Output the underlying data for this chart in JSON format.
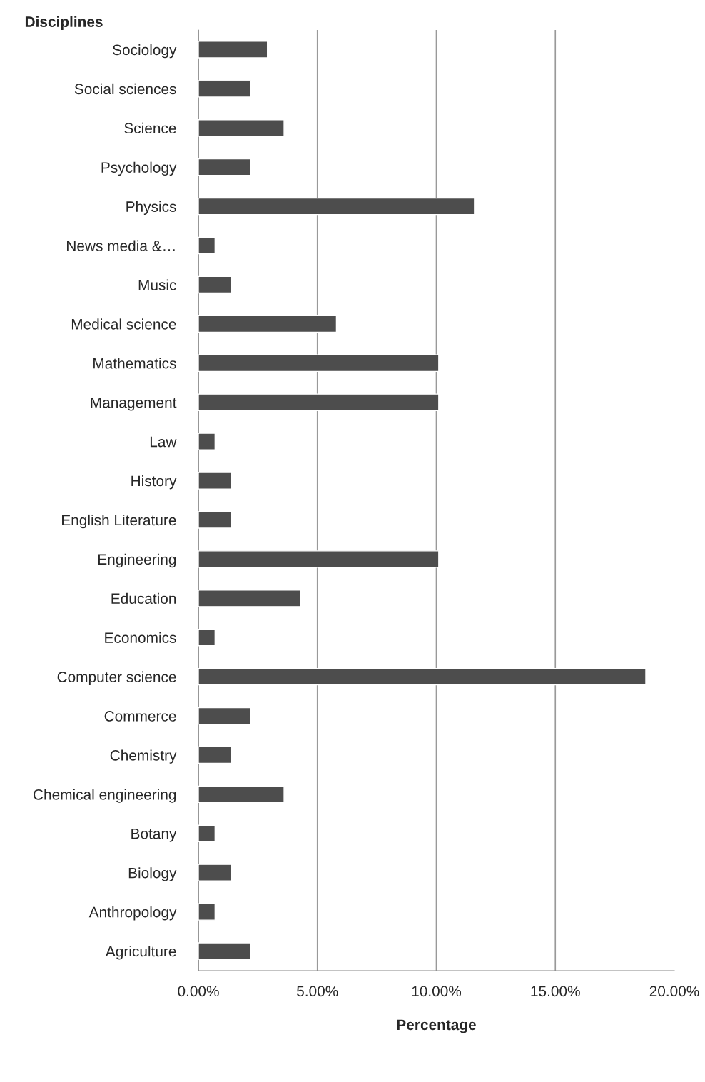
{
  "chart_data": {
    "type": "bar",
    "orientation": "horizontal",
    "ylabel": "Disciplines",
    "xlabel": "Percentage",
    "categories": [
      "Sociology",
      "Social sciences",
      "Science",
      "Psychology",
      "Physics",
      "News media &…",
      "Music",
      "Medical science",
      "Mathematics",
      "Management",
      "Law",
      "History",
      "English Literature",
      "Engineering",
      "Education",
      "Economics",
      "Computer science",
      "Commerce",
      "Chemistry",
      "Chemical engineering",
      "Botany",
      "Biology",
      "Anthropology",
      "Agriculture"
    ],
    "values": [
      2.9,
      2.2,
      3.6,
      2.2,
      11.6,
      0.7,
      1.4,
      5.8,
      10.1,
      10.1,
      0.7,
      1.4,
      1.4,
      10.1,
      4.3,
      0.7,
      18.8,
      2.2,
      1.4,
      3.6,
      0.7,
      1.4,
      0.7,
      2.2
    ],
    "color": "#4d4d4d",
    "xlim": [
      0,
      20
    ],
    "xticks": [
      {
        "value": 0,
        "label": "0.00%"
      },
      {
        "value": 5,
        "label": "5.00%"
      },
      {
        "value": 10,
        "label": "10.00%"
      },
      {
        "value": 15,
        "label": "15.00%"
      },
      {
        "value": 20,
        "label": "20.00%"
      }
    ],
    "grid": "x",
    "legend": false
  }
}
